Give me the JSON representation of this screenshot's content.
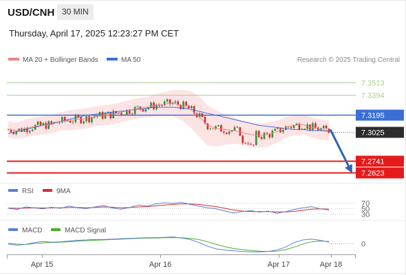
{
  "header": {
    "symbol": "USD/CNH",
    "timeframe": "30 MIN",
    "datetime": "Thursday, April 17, 2025 12:23:27 PM CET"
  },
  "legend": {
    "ma20_label": "MA 20 + Bollinger Bands",
    "ma50_label": "MA 50",
    "credit": "Research © 2025 Trading Central"
  },
  "colors": {
    "ma20": "#f08080",
    "bollinger_fill": "#fde4e4",
    "ma50": "#3a6fd8",
    "resistance": "#a8d08d",
    "support": "#e51b1b",
    "pivot": "#3a6fd8",
    "current": "#2c2c2c",
    "candle_up": "#2f8f3a",
    "candle_down": "#d02b2b",
    "arrow": "#2f64b0",
    "rsi": "#5b7fd6",
    "rsi_ma": "#d62b2b",
    "macd": "#5b7fd6",
    "macd_signal": "#4caf28"
  },
  "chart_data": [
    {
      "type": "line",
      "panel": "price",
      "price_range": [
        7.255,
        7.365
      ],
      "levels": [
        {
          "label": "7.3513",
          "value": 7.3513,
          "kind": "resistance"
        },
        {
          "label": "7.3394",
          "value": 7.3394,
          "kind": "resistance"
        },
        {
          "label": "7.3195",
          "value": 7.3195,
          "kind": "pivot"
        },
        {
          "label": "7.3025",
          "value": 7.3025,
          "kind": "current"
        },
        {
          "label": "7.2741",
          "value": 7.2741,
          "kind": "support"
        },
        {
          "label": "7.2623",
          "value": 7.2623,
          "kind": "support"
        }
      ],
      "x_ticks": [
        "Apr 15",
        "Apr 16",
        "Apr 17",
        "Apr 18"
      ],
      "series": [
        {
          "values": [
            7.305,
            7.304,
            7.306,
            7.308,
            7.309,
            7.31,
            7.313,
            7.314,
            7.315,
            7.316,
            7.318,
            7.319,
            7.32,
            7.322,
            7.324,
            7.326,
            7.327,
            7.329,
            7.33,
            7.331,
            7.329,
            7.325,
            7.318,
            7.309,
            7.306,
            7.305,
            7.304,
            7.302,
            7.3,
            7.299,
            7.3,
            7.303,
            7.307,
            7.309,
            7.31,
            7.307,
            7.305,
            7.304
          ]
        },
        {
          "values": [
            7.301,
            7.303,
            7.305,
            7.307,
            7.309,
            7.311,
            7.313,
            7.315,
            7.317,
            7.319,
            7.32,
            7.321,
            7.322,
            7.323,
            7.324,
            7.325,
            7.326,
            7.327,
            7.327,
            7.327,
            7.326,
            7.325,
            7.323,
            7.321,
            7.319,
            7.317,
            7.315,
            7.313,
            7.311,
            7.309,
            7.308,
            7.307,
            7.306,
            7.305,
            7.305,
            7.304,
            7.304,
            7.303
          ]
        }
      ],
      "forecast_arrow": {
        "from": 7.305,
        "to": 7.271
      }
    },
    {
      "type": "line",
      "panel": "rsi",
      "y_ticks": [
        "70",
        "50",
        "30"
      ],
      "series": [
        {
          "name": "RSI",
          "values": [
            50,
            46,
            55,
            52,
            48,
            54,
            50,
            58,
            52,
            49,
            55,
            60,
            51,
            47,
            53,
            62,
            58,
            66,
            70,
            68,
            72,
            64,
            58,
            52,
            48,
            40,
            33,
            38,
            42,
            36,
            40,
            32,
            38,
            46,
            52,
            56,
            48,
            44
          ]
        },
        {
          "name": "9MA",
          "values": [
            51,
            50,
            51,
            52,
            51,
            52,
            52,
            53,
            53,
            52,
            53,
            55,
            54,
            52,
            53,
            55,
            56,
            59,
            62,
            64,
            66,
            66,
            64,
            60,
            56,
            50,
            44,
            40,
            38,
            38,
            38,
            37,
            37,
            39,
            43,
            47,
            48,
            47
          ]
        }
      ]
    },
    {
      "type": "line",
      "panel": "macd",
      "y_ticks": [
        "0"
      ],
      "series": [
        {
          "name": "MACD",
          "values": [
            -0.2,
            -0.5,
            -0.3,
            0.2,
            0.5,
            0.3,
            0.4,
            0.6,
            0.8,
            0.9,
            1.0,
            1.0,
            1.1,
            1.2,
            1.3,
            1.4,
            1.5,
            1.5,
            1.6,
            1.7,
            1.4,
            1.0,
            0.2,
            -0.8,
            -1.5,
            -1.8,
            -2.0,
            -2.2,
            -2.3,
            -2.3,
            -2.2,
            -1.8,
            -1.0,
            0.2,
            0.9,
            1.1,
            0.8,
            0.3
          ]
        },
        {
          "name": "MACD Signal",
          "values": [
            0.0,
            -0.2,
            -0.3,
            -0.1,
            0.1,
            0.2,
            0.3,
            0.4,
            0.6,
            0.7,
            0.8,
            0.9,
            1.0,
            1.1,
            1.2,
            1.3,
            1.4,
            1.4,
            1.5,
            1.5,
            1.5,
            1.3,
            1.0,
            0.4,
            -0.3,
            -0.9,
            -1.4,
            -1.7,
            -1.9,
            -2.1,
            -2.2,
            -2.1,
            -1.7,
            -1.0,
            -0.2,
            0.4,
            0.6,
            0.5
          ]
        }
      ]
    }
  ]
}
